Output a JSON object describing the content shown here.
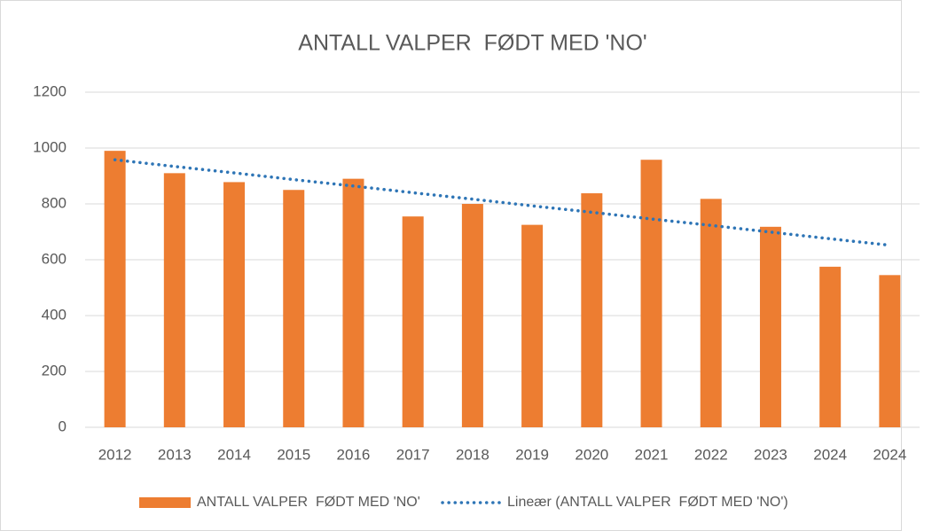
{
  "chart_data": {
    "type": "bar",
    "title": "ANTALL VALPER  FØDT MED 'NO'",
    "categories": [
      "2012",
      "2013",
      "2014",
      "2015",
      "2016",
      "2017",
      "2018",
      "2019",
      "2020",
      "2021",
      "2022",
      "2023",
      "2024",
      "2024"
    ],
    "series": [
      {
        "name": "ANTALL VALPER  FØDT MED 'NO'",
        "color": "#ed7d31",
        "values": [
          990,
          910,
          878,
          850,
          890,
          755,
          800,
          725,
          838,
          958,
          818,
          718,
          575,
          545
        ]
      },
      {
        "name": "Lineær (ANTALL VALPER  FØDT MED 'NO')",
        "color": "#2e75b6",
        "type": "line",
        "values": [
          958,
          934,
          911,
          887,
          864,
          840,
          817,
          793,
          770,
          746,
          723,
          699,
          675,
          652
        ]
      }
    ],
    "ylim": [
      0,
      1200
    ],
    "yticks": [
      0,
      200,
      400,
      600,
      800,
      1000,
      1200
    ],
    "grid": true,
    "legend": "bottom"
  }
}
